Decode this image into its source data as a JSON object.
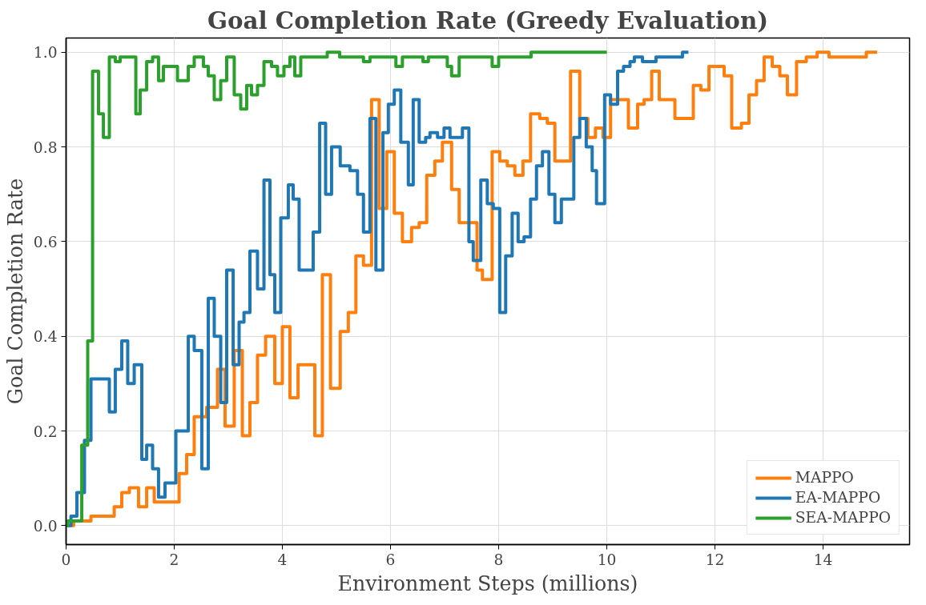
{
  "chart_data": {
    "type": "step",
    "title": "Goal Completion Rate (Greedy Evaluation)",
    "xlabel": "Environment Steps (millions)",
    "ylabel": "Goal Completion Rate",
    "xlim": [
      0,
      15.6
    ],
    "ylim": [
      -0.04,
      1.03
    ],
    "xticks": [
      0,
      2,
      4,
      6,
      8,
      10,
      12,
      14
    ],
    "yticks": [
      {
        "value": 0,
        "label": "0.0"
      },
      {
        "value": 0.2,
        "label": "0.2"
      },
      {
        "value": 0.4,
        "label": "0.4"
      },
      {
        "value": 0.6,
        "label": "0.6"
      },
      {
        "value": 0.8,
        "label": "0.8"
      },
      {
        "value": 1,
        "label": "1.0"
      }
    ],
    "grid": true,
    "legend": "bottom right",
    "series": [
      {
        "name": "MAPPO",
        "color": "#ff7f0e",
        "x": [
          0,
          0.14,
          0.46,
          0.89,
          1.03,
          1.17,
          1.34,
          1.49,
          1.63,
          2.09,
          2.23,
          2.37,
          2.6,
          2.8,
          2.94,
          3.11,
          3.26,
          3.4,
          3.54,
          3.69,
          3.86,
          4.0,
          4.14,
          4.29,
          4.43,
          4.6,
          4.74,
          4.89,
          5.07,
          5.22,
          5.36,
          5.5,
          5.65,
          5.79,
          5.93,
          6.07,
          6.22,
          6.39,
          6.53,
          6.67,
          6.82,
          6.96,
          7.13,
          7.27,
          7.45,
          7.6,
          7.7,
          7.88,
          8.02,
          8.16,
          8.3,
          8.45,
          8.59,
          8.76,
          8.9,
          9.04,
          9.22,
          9.33,
          9.5,
          9.65,
          9.79,
          9.93,
          10.07,
          10.25,
          10.4,
          10.57,
          10.69,
          10.83,
          10.97,
          11.26,
          11.43,
          11.6,
          11.74,
          11.89,
          12.17,
          12.31,
          12.49,
          12.63,
          12.77,
          12.91,
          13.06,
          13.2,
          13.34,
          13.51,
          13.69,
          13.89,
          14.11,
          14.4,
          14.8,
          15.0
        ],
        "values": [
          0.0,
          0.01,
          0.02,
          0.04,
          0.07,
          0.08,
          0.04,
          0.08,
          0.05,
          0.11,
          0.15,
          0.23,
          0.25,
          0.33,
          0.21,
          0.37,
          0.19,
          0.26,
          0.36,
          0.4,
          0.3,
          0.42,
          0.27,
          0.34,
          0.34,
          0.19,
          0.53,
          0.29,
          0.41,
          0.45,
          0.57,
          0.55,
          0.9,
          0.67,
          0.79,
          0.66,
          0.6,
          0.63,
          0.64,
          0.74,
          0.77,
          0.81,
          0.71,
          0.64,
          0.64,
          0.54,
          0.52,
          0.79,
          0.77,
          0.76,
          0.74,
          0.77,
          0.87,
          0.86,
          0.85,
          0.77,
          0.77,
          0.96,
          0.86,
          0.82,
          0.84,
          0.82,
          0.9,
          0.9,
          0.84,
          0.89,
          0.9,
          0.96,
          0.9,
          0.86,
          0.86,
          0.93,
          0.92,
          0.97,
          0.95,
          0.84,
          0.85,
          0.91,
          0.94,
          0.99,
          0.97,
          0.95,
          0.91,
          0.98,
          0.99,
          1.0,
          0.99,
          0.99,
          1.0,
          1.0
        ]
      },
      {
        "name": "EA-MAPPO",
        "color": "#1f77b4",
        "x": [
          0,
          0.09,
          0.2,
          0.34,
          0.46,
          0.69,
          0.8,
          0.91,
          1.03,
          1.14,
          1.26,
          1.4,
          1.49,
          1.6,
          1.71,
          1.83,
          2.03,
          2.26,
          2.37,
          2.51,
          2.63,
          2.74,
          2.86,
          2.97,
          3.09,
          3.2,
          3.29,
          3.4,
          3.54,
          3.66,
          3.77,
          3.86,
          3.97,
          4.11,
          4.2,
          4.31,
          4.57,
          4.69,
          4.8,
          4.91,
          5.07,
          5.25,
          5.39,
          5.5,
          5.62,
          5.73,
          5.86,
          5.96,
          6.07,
          6.19,
          6.33,
          6.42,
          6.53,
          6.65,
          6.73,
          6.87,
          6.99,
          7.1,
          7.33,
          7.45,
          7.53,
          7.67,
          7.79,
          7.9,
          8.02,
          8.13,
          8.25,
          8.36,
          8.47,
          8.59,
          8.7,
          8.81,
          8.93,
          9.04,
          9.16,
          9.3,
          9.39,
          9.5,
          9.62,
          9.73,
          9.81,
          9.96,
          10.07,
          10.2,
          10.31,
          10.43,
          10.51,
          10.66,
          10.91,
          11.4,
          11.51
        ],
        "values": [
          0.0,
          0.02,
          0.07,
          0.18,
          0.31,
          0.31,
          0.24,
          0.33,
          0.39,
          0.3,
          0.34,
          0.14,
          0.17,
          0.12,
          0.06,
          0.09,
          0.2,
          0.4,
          0.37,
          0.12,
          0.48,
          0.4,
          0.26,
          0.54,
          0.34,
          0.43,
          0.45,
          0.58,
          0.5,
          0.73,
          0.53,
          0.45,
          0.65,
          0.72,
          0.69,
          0.54,
          0.62,
          0.85,
          0.7,
          0.8,
          0.76,
          0.75,
          0.7,
          0.62,
          0.86,
          0.54,
          0.83,
          0.89,
          0.92,
          0.81,
          0.72,
          0.9,
          0.81,
          0.82,
          0.83,
          0.82,
          0.84,
          0.82,
          0.84,
          0.6,
          0.56,
          0.73,
          0.68,
          0.67,
          0.45,
          0.57,
          0.66,
          0.6,
          0.61,
          0.69,
          0.76,
          0.79,
          0.7,
          0.64,
          0.69,
          0.69,
          0.82,
          0.86,
          0.8,
          0.75,
          0.68,
          0.91,
          0.89,
          0.96,
          0.97,
          0.98,
          0.99,
          0.98,
          0.99,
          1.0,
          1.0
        ]
      },
      {
        "name": "SEA-MAPPO",
        "color": "#2ca02c",
        "x": [
          0,
          0.03,
          0.14,
          0.29,
          0.4,
          0.49,
          0.6,
          0.69,
          0.8,
          0.91,
          1.0,
          1.29,
          1.37,
          1.49,
          1.6,
          1.71,
          1.8,
          1.89,
          2.06,
          2.26,
          2.37,
          2.54,
          2.63,
          2.74,
          2.86,
          2.97,
          3.11,
          3.23,
          3.34,
          3.43,
          3.54,
          3.66,
          3.8,
          3.91,
          4.03,
          4.14,
          4.23,
          4.34,
          4.54,
          4.66,
          4.83,
          5.06,
          5.5,
          5.62,
          6.1,
          6.22,
          6.6,
          6.7,
          7.05,
          7.13,
          7.27,
          7.88,
          8.0,
          8.6,
          10.0
        ],
        "values": [
          0.0,
          0.01,
          0.01,
          0.17,
          0.39,
          0.96,
          0.87,
          0.82,
          0.99,
          0.98,
          0.99,
          0.87,
          0.92,
          0.98,
          0.99,
          0.94,
          0.97,
          0.97,
          0.94,
          0.97,
          0.99,
          0.97,
          0.95,
          0.9,
          0.94,
          0.99,
          0.91,
          0.88,
          0.93,
          0.91,
          0.93,
          0.98,
          0.97,
          0.95,
          0.97,
          0.99,
          0.95,
          0.99,
          0.99,
          0.99,
          1.0,
          0.99,
          0.98,
          0.99,
          0.97,
          0.99,
          0.98,
          0.99,
          0.97,
          0.95,
          0.99,
          0.97,
          0.99,
          1.0,
          1.0
        ]
      }
    ]
  }
}
